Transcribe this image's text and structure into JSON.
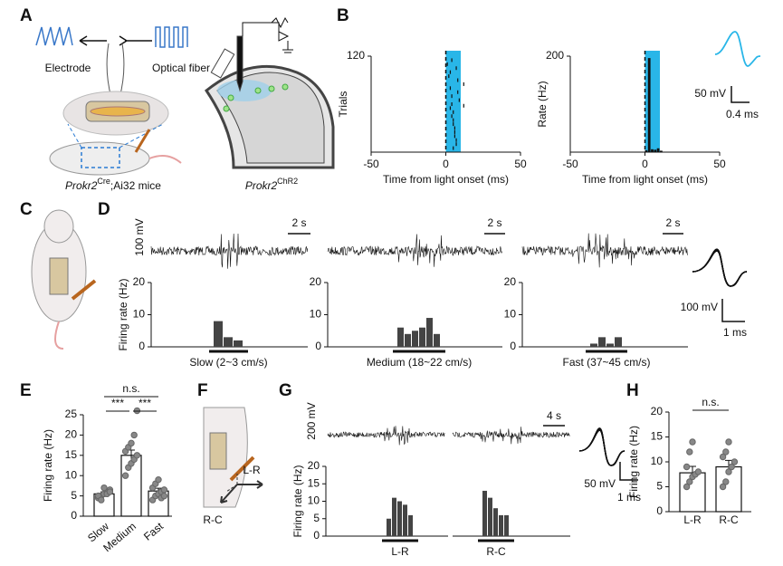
{
  "figure": {
    "panels": [
      "A",
      "B",
      "C",
      "D",
      "E",
      "F",
      "G",
      "H"
    ]
  },
  "texts": {
    "A": {
      "electrode": "Electrode",
      "fiber": "Optical fiber",
      "mouse": {
        "gene": "Prokr2",
        "sup": "Cre",
        "rest": ";Ai32 mice"
      },
      "brain": {
        "gene": "Prokr2",
        "sup": "ChR2"
      }
    },
    "B": {
      "scale_v": "50 mV",
      "scale_t": "0.4 ms"
    },
    "D": {
      "trace_v": "100 mV",
      "trace_t": [
        "2 s",
        "2 s",
        "2 s"
      ],
      "spike_v": "100 mV",
      "spike_t": "1 ms"
    },
    "F": {
      "lr": "L-R",
      "rc": "R-C"
    },
    "G": {
      "trace_v": "200 mV",
      "trace_t": "4 s",
      "spike_v": "50 mV",
      "spike_t": "1 ms"
    }
  },
  "chart_data": [
    {
      "type": "raster",
      "ylabel": "Trials",
      "xlabel": "Time from light onset (ms)",
      "xlim": [
        -50,
        50
      ],
      "xticks": [
        -50,
        0,
        50
      ],
      "ylim": [
        0,
        120
      ],
      "yticks": [
        120
      ],
      "shade": [
        0,
        10
      ],
      "onset": 0,
      "x": [
        1,
        2,
        3,
        3,
        4,
        4,
        5,
        5,
        6,
        6,
        7,
        7,
        8,
        8,
        9,
        3,
        4,
        5,
        6,
        7,
        12,
        12,
        5,
        4
      ],
      "values": [
        110,
        95,
        100,
        80,
        70,
        60,
        50,
        40,
        30,
        20,
        15,
        105,
        90,
        75,
        65,
        55,
        45,
        35,
        25,
        10,
        85,
        58,
        5,
        115
      ]
    },
    {
      "type": "histogram",
      "ylabel": "Rate (Hz)",
      "xlabel": "Time from light onset (ms)",
      "xlim": [
        -50,
        50
      ],
      "xticks": [
        -50,
        0,
        50
      ],
      "ylim": [
        0,
        200
      ],
      "yticks": [
        200
      ],
      "shade": [
        0,
        10
      ],
      "onset": 0,
      "bins": [
        0,
        2,
        4,
        6,
        8,
        10,
        12
      ],
      "values": [
        4,
        196,
        6,
        5,
        8,
        3
      ]
    },
    {
      "type": "bar",
      "ylabel": "Firing rate (Hz)",
      "xlabel": "Slow (2~3 cm/s)",
      "ylim": [
        0,
        20
      ],
      "yticks": [
        0,
        10,
        20
      ],
      "values": [
        8,
        3,
        2
      ]
    },
    {
      "type": "bar",
      "xlabel": "Medium (18~22 cm/s)",
      "ylim": [
        0,
        20
      ],
      "yticks": [
        0,
        10,
        20
      ],
      "values": [
        6,
        4,
        5,
        6,
        9,
        4
      ]
    },
    {
      "type": "bar",
      "xlabel": "Fast (37~45 cm/s)",
      "ylim": [
        0,
        20
      ],
      "yticks": [
        0,
        10,
        20
      ],
      "values": [
        1,
        3,
        1,
        3
      ]
    },
    {
      "type": "bar",
      "ylabel": "Firing rate (Hz)",
      "xlabel": "L-R",
      "ylim": [
        0,
        20
      ],
      "yticks": [
        0,
        5,
        10,
        15,
        20
      ],
      "values": [
        5,
        11,
        10,
        9,
        6
      ]
    },
    {
      "type": "bar",
      "xlabel": "R-C",
      "ylim": [
        0,
        20
      ],
      "values": [
        13,
        11,
        8,
        6,
        6
      ]
    },
    {
      "type": "bar",
      "ylabel": "Firing rate (Hz)",
      "categories": [
        "Slow",
        "Medium",
        "Fast"
      ],
      "values": [
        5.5,
        15,
        6.2
      ],
      "errors": [
        0.5,
        1.3,
        0.7
      ],
      "points": [
        [
          4.5,
          5,
          5.5,
          6,
          6.5,
          5,
          4,
          7,
          5.5,
          6
        ],
        [
          10,
          12,
          13,
          14,
          15,
          16,
          17,
          18,
          20,
          26
        ],
        [
          4,
          5,
          5.5,
          6,
          6.5,
          7,
          8,
          9,
          4.5,
          5
        ]
      ],
      "ylim": [
        0,
        25
      ],
      "yticks": [
        0,
        5,
        10,
        15,
        20,
        25
      ],
      "annotations": [
        "n.s.",
        "***",
        "***"
      ]
    },
    {
      "type": "bar",
      "ylabel": "Firing rate (Hz)",
      "categories": [
        "L-R",
        "R-C"
      ],
      "values": [
        7.8,
        9
      ],
      "errors": [
        1.3,
        1.3
      ],
      "points": [
        [
          5,
          6,
          7,
          7.5,
          8,
          9,
          12,
          14
        ],
        [
          5,
          6,
          8,
          9,
          10,
          11,
          12,
          14
        ]
      ],
      "ylim": [
        0,
        20
      ],
      "yticks": [
        0,
        5,
        10,
        15,
        20
      ],
      "annotations": [
        "n.s."
      ]
    }
  ]
}
